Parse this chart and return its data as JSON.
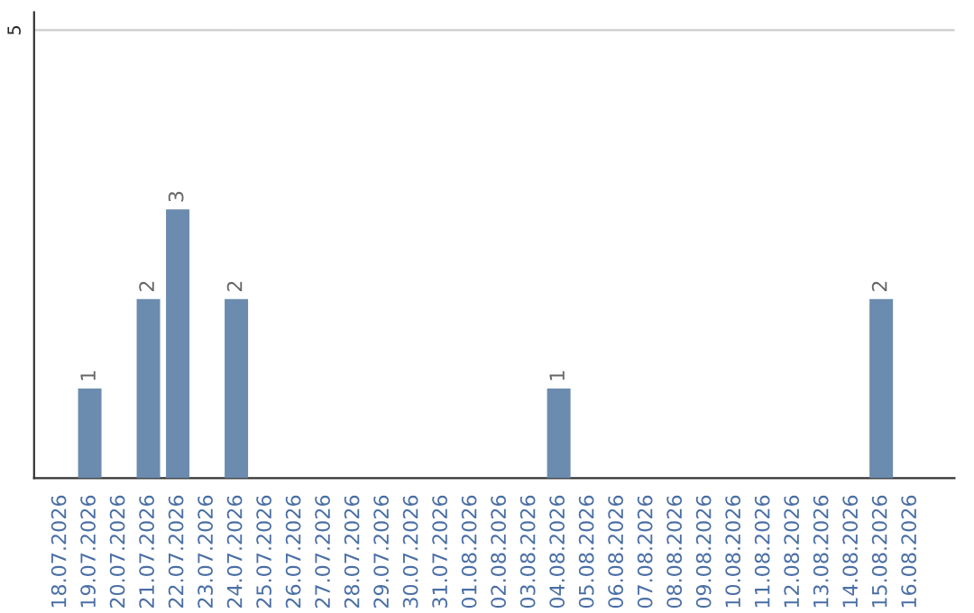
{
  "chart_data": {
    "type": "bar",
    "categories": [
      "18.07.2026",
      "19.07.2026",
      "20.07.2026",
      "21.07.2026",
      "22.07.2026",
      "23.07.2026",
      "24.07.2026",
      "25.07.2026",
      "26.07.2026",
      "27.07.2026",
      "28.07.2026",
      "29.07.2026",
      "30.07.2026",
      "31.07.2026",
      "01.08.2026",
      "02.08.2026",
      "03.08.2026",
      "04.08.2026",
      "05.08.2026",
      "06.08.2026",
      "07.08.2026",
      "08.08.2026",
      "09.08.2026",
      "10.08.2026",
      "11.08.2026",
      "12.08.2026",
      "13.08.2026",
      "14.08.2026",
      "15.08.2026",
      "16.08.2026"
    ],
    "values": [
      0,
      1,
      0,
      2,
      3,
      0,
      2,
      0,
      0,
      0,
      0,
      0,
      0,
      0,
      0,
      0,
      0,
      1,
      0,
      0,
      0,
      0,
      0,
      0,
      0,
      0,
      0,
      0,
      2,
      0
    ],
    "value_labels": [
      null,
      "1",
      null,
      "2",
      "3",
      null,
      "2",
      null,
      null,
      null,
      null,
      null,
      null,
      null,
      null,
      null,
      null,
      "1",
      null,
      null,
      null,
      null,
      null,
      null,
      null,
      null,
      null,
      null,
      "2",
      null
    ],
    "color": "#6b8cae",
    "ylim": [
      0,
      5.2
    ],
    "yticks": [
      5
    ],
    "grid": "y"
  }
}
